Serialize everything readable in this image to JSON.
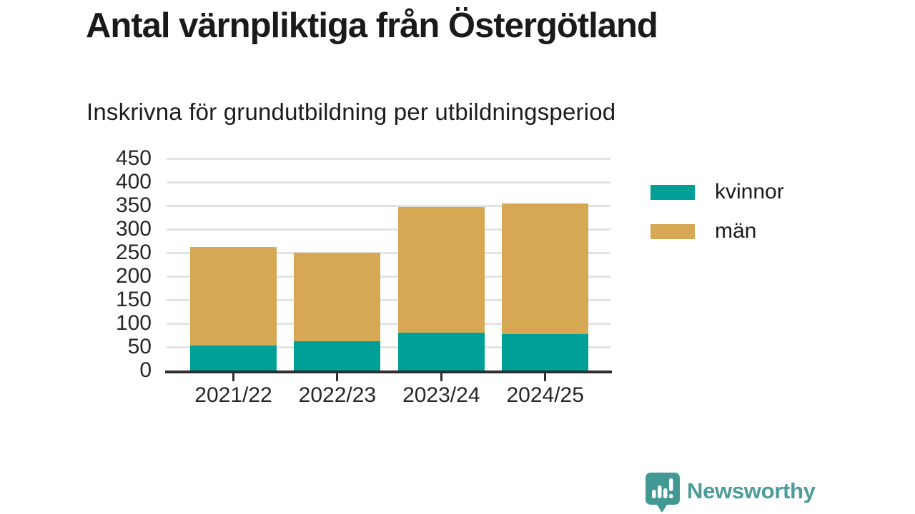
{
  "header": {
    "title": "Antal värnpliktiga från Östergötland",
    "subtitle": "Inskrivna för grundutbildning per utbildningsperiod"
  },
  "chart_data": {
    "type": "bar",
    "stacked": true,
    "categories": [
      "2021/22",
      "2022/23",
      "2023/24",
      "2024/25"
    ],
    "series": [
      {
        "name": "kvinnor",
        "color": "#00a096",
        "values": [
          53,
          62,
          80,
          77
        ]
      },
      {
        "name": "män",
        "color": "#d6a853",
        "values": [
          209,
          188,
          267,
          277
        ]
      }
    ],
    "stack_totals": [
      262,
      250,
      347,
      354
    ],
    "title": "Antal värnpliktiga från Östergötland",
    "subtitle": "Inskrivna för grundutbildning per utbildningsperiod",
    "xlabel": "",
    "ylabel": "",
    "ylim": [
      0,
      450
    ],
    "yticks": [
      0,
      50,
      100,
      150,
      200,
      250,
      300,
      350,
      400,
      450
    ],
    "grid": "horizontal",
    "legend_position": "right"
  },
  "footer": {
    "brand": "Newsworthy"
  },
  "theme": {
    "background": "#ffffff",
    "bar_teal": "#00a096",
    "bar_gold": "#d6a853",
    "gridline": "#e3e3e3",
    "axis": "#2e2e2e",
    "text": "#1a1a1a",
    "brand_teal": "#4b9d99"
  }
}
